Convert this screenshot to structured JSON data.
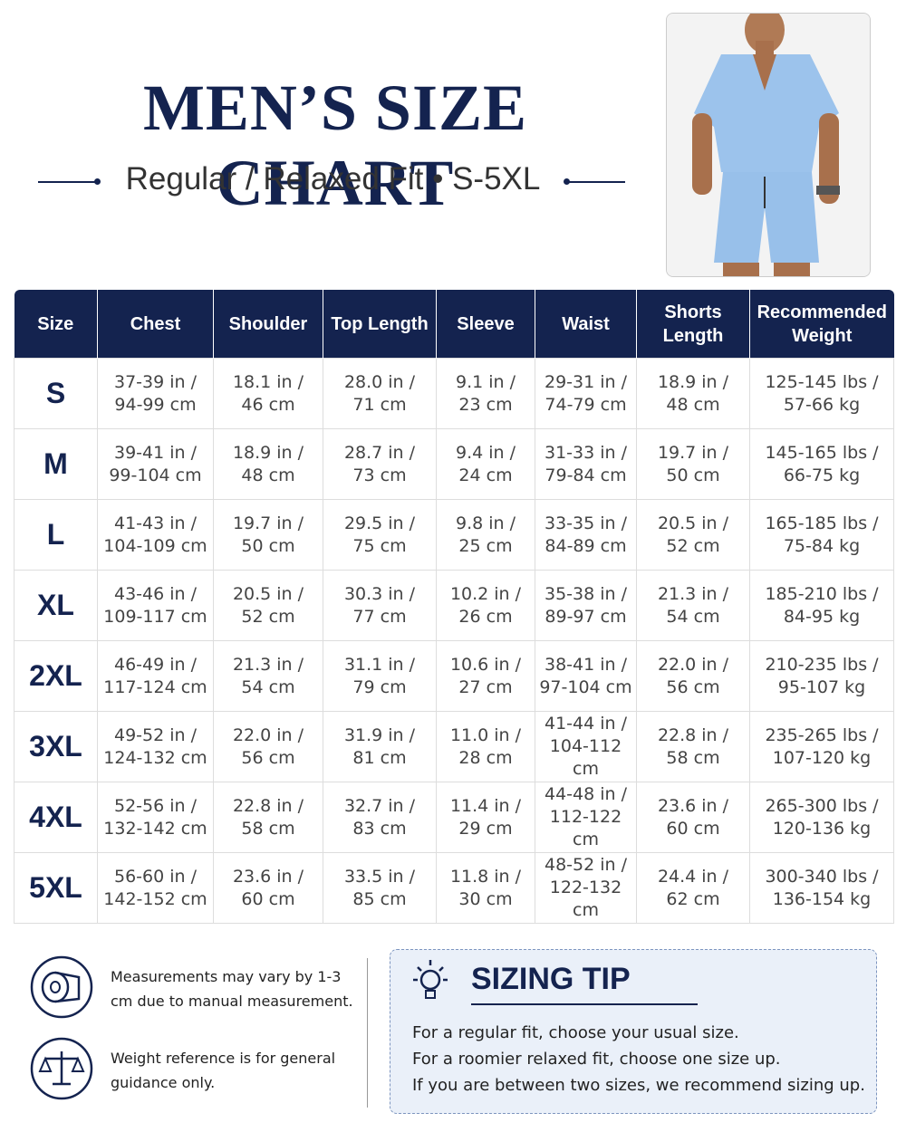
{
  "header": {
    "title": "MEN’S SIZE CHART",
    "subtitle": "Regular / Relaxed Fit • S-5XL"
  },
  "table": {
    "columns": [
      "Size",
      "Chest",
      "Shoulder",
      "Top Length",
      "Sleeve",
      "Waist",
      "Shorts Length",
      "Recommended Weight"
    ],
    "rows": [
      [
        "S",
        [
          "37-39 in /",
          "94-99 cm"
        ],
        [
          "18.1 in /",
          "46 cm"
        ],
        [
          "28.0 in /",
          "71 cm"
        ],
        [
          "9.1 in /",
          "23 cm"
        ],
        [
          "29-31 in /",
          "74-79 cm"
        ],
        [
          "18.9 in /",
          "48 cm"
        ],
        [
          "125-145 lbs /",
          "57-66 kg"
        ]
      ],
      [
        "M",
        [
          "39-41 in /",
          "99-104 cm"
        ],
        [
          "18.9 in /",
          "48 cm"
        ],
        [
          "28.7 in /",
          "73 cm"
        ],
        [
          "9.4 in /",
          "24 cm"
        ],
        [
          "31-33 in /",
          "79-84 cm"
        ],
        [
          "19.7 in /",
          "50 cm"
        ],
        [
          "145-165 lbs /",
          "66-75 kg"
        ]
      ],
      [
        "L",
        [
          "41-43 in /",
          "104-109 cm"
        ],
        [
          "19.7 in /",
          "50 cm"
        ],
        [
          "29.5 in /",
          "75 cm"
        ],
        [
          "9.8 in /",
          "25 cm"
        ],
        [
          "33-35 in /",
          "84-89 cm"
        ],
        [
          "20.5 in /",
          "52 cm"
        ],
        [
          "165-185 lbs /",
          "75-84 kg"
        ]
      ],
      [
        "XL",
        [
          "43-46 in /",
          "109-117 cm"
        ],
        [
          "20.5 in /",
          "52 cm"
        ],
        [
          "30.3 in /",
          "77 cm"
        ],
        [
          "10.2 in /",
          "26 cm"
        ],
        [
          "35-38 in /",
          "89-97 cm"
        ],
        [
          "21.3 in /",
          "54 cm"
        ],
        [
          "185-210 lbs /",
          "84-95 kg"
        ]
      ],
      [
        "2XL",
        [
          "46-49 in /",
          "117-124 cm"
        ],
        [
          "21.3 in /",
          "54 cm"
        ],
        [
          "31.1 in /",
          "79 cm"
        ],
        [
          "10.6 in /",
          "27 cm"
        ],
        [
          "38-41 in /",
          "97-104 cm"
        ],
        [
          "22.0 in /",
          "56 cm"
        ],
        [
          "210-235 lbs /",
          "95-107 kg"
        ]
      ],
      [
        "3XL",
        [
          "49-52 in /",
          "124-132 cm"
        ],
        [
          "22.0 in /",
          "56 cm"
        ],
        [
          "31.9 in /",
          "81 cm"
        ],
        [
          "11.0 in /",
          "28 cm"
        ],
        [
          "41-44 in /",
          "104-112 cm"
        ],
        [
          "22.8 in /",
          "58 cm"
        ],
        [
          "235-265 lbs /",
          "107-120 kg"
        ]
      ],
      [
        "4XL",
        [
          "52-56 in /",
          "132-142 cm"
        ],
        [
          "22.8 in /",
          "58 cm"
        ],
        [
          "32.7 in /",
          "83 cm"
        ],
        [
          "11.4 in /",
          "29 cm"
        ],
        [
          "44-48 in /",
          "112-122 cm"
        ],
        [
          "23.6 in /",
          "60 cm"
        ],
        [
          "265-300 lbs /",
          "120-136 kg"
        ]
      ],
      [
        "5XL",
        [
          "56-60 in /",
          "142-152 cm"
        ],
        [
          "23.6 in /",
          "60 cm"
        ],
        [
          "33.5 in /",
          "85 cm"
        ],
        [
          "11.8 in /",
          "30 cm"
        ],
        [
          "48-52 in /",
          "122-132 cm"
        ],
        [
          "24.4 in /",
          "62 cm"
        ],
        [
          "300-340 lbs /",
          "136-154 kg"
        ]
      ]
    ]
  },
  "notes": [
    "Measurements may vary by 1-3 cm due to manual measurement.",
    "Weight reference is for general guidance only."
  ],
  "tip": {
    "title": "SIZING TIP",
    "lines": [
      "For a regular fit, choose your usual size.",
      "For a roomier relaxed fit, choose one size up.",
      "If you are between two sizes, we recommend sizing up."
    ]
  }
}
